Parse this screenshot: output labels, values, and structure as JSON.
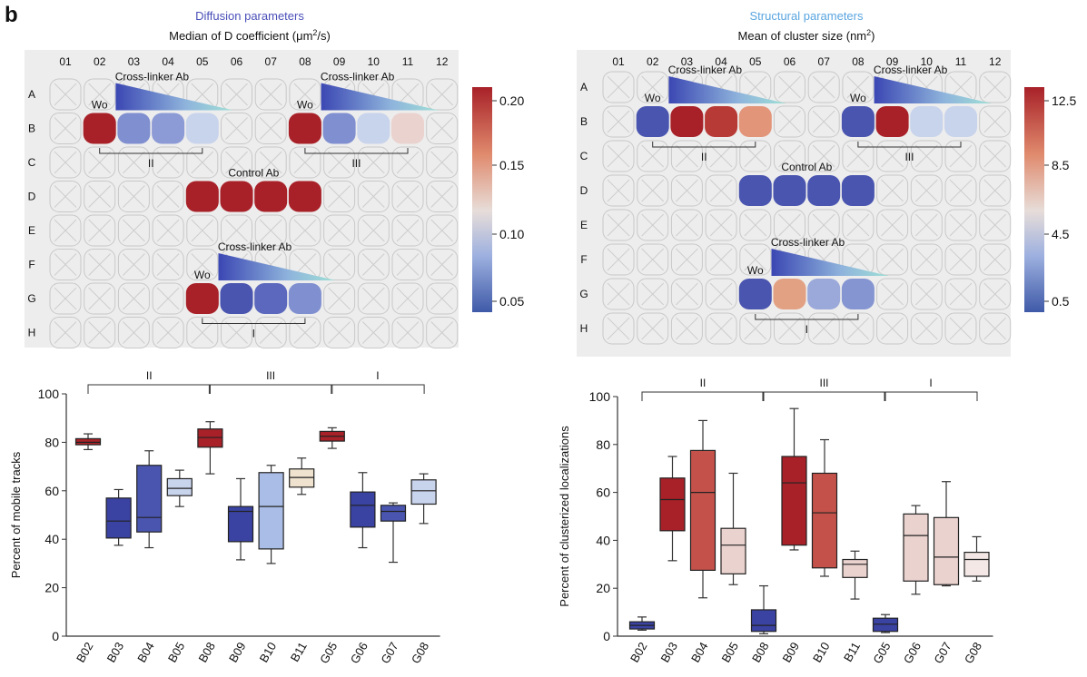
{
  "panel_label": "b",
  "colors": {
    "red": "#a82128",
    "red_med": "#c5524a",
    "salmon": "#e3a184",
    "pale_pink": "#ead2cf",
    "pale_blue": "#c8d3ec",
    "mid_blue": "#7f8fd0",
    "blue": "#4a55b0",
    "dark_blue": "#3a42a2",
    "plate_bg": "#ededed"
  },
  "plate_rows": [
    "A",
    "B",
    "C",
    "D",
    "E",
    "F",
    "G",
    "H"
  ],
  "plate_cols": [
    "01",
    "02",
    "03",
    "04",
    "05",
    "06",
    "07",
    "08",
    "09",
    "10",
    "11",
    "12"
  ],
  "heatmaps": [
    {
      "category_title": "Diffusion parameters",
      "category_color": "#4a4fb8",
      "title_main": "Median of D coefficient (",
      "title_unit": "μm",
      "title_sup": "2",
      "title_end": "/s)",
      "colorbar_ticks": [
        "0.20",
        "0.15",
        "0.10",
        "0.05"
      ],
      "cross_linker_label": "Cross-linker Ab",
      "wo_label": "Wo",
      "control_label": "Control Ab",
      "group_labels": [
        "II",
        "III",
        "I"
      ],
      "filled_wells": [
        {
          "row": "B",
          "col": "02",
          "color": "#a82128"
        },
        {
          "row": "B",
          "col": "03",
          "color": "#7f8fd0"
        },
        {
          "row": "B",
          "col": "04",
          "color": "#8c9ad6"
        },
        {
          "row": "B",
          "col": "05",
          "color": "#c8d3ec"
        },
        {
          "row": "B",
          "col": "08",
          "color": "#a82128"
        },
        {
          "row": "B",
          "col": "09",
          "color": "#7f8fd0"
        },
        {
          "row": "B",
          "col": "10",
          "color": "#c8d3ec"
        },
        {
          "row": "B",
          "col": "11",
          "color": "#ead2cf"
        },
        {
          "row": "D",
          "col": "05",
          "color": "#a82128"
        },
        {
          "row": "D",
          "col": "06",
          "color": "#a82128"
        },
        {
          "row": "D",
          "col": "07",
          "color": "#a82128"
        },
        {
          "row": "D",
          "col": "08",
          "color": "#a82128"
        },
        {
          "row": "G",
          "col": "05",
          "color": "#a82128"
        },
        {
          "row": "G",
          "col": "06",
          "color": "#4a55b0"
        },
        {
          "row": "G",
          "col": "07",
          "color": "#5b68bd"
        },
        {
          "row": "G",
          "col": "08",
          "color": "#7f8fd0"
        }
      ]
    },
    {
      "category_title": "Structural parameters",
      "category_color": "#5aa5e0",
      "title_main": "Mean of cluster size (",
      "title_unit": "nm",
      "title_sup": "2",
      "title_end": ")",
      "colorbar_ticks": [
        "12.5",
        "8.5",
        "4.5",
        "0.5"
      ],
      "cross_linker_label": "Cross-linker Ab",
      "wo_label": "Wo",
      "control_label": "Control Ab",
      "group_labels": [
        "II",
        "III",
        "I"
      ],
      "filled_wells": [
        {
          "row": "B",
          "col": "02",
          "color": "#4a55b0"
        },
        {
          "row": "B",
          "col": "03",
          "color": "#a82128"
        },
        {
          "row": "B",
          "col": "04",
          "color": "#b83a36"
        },
        {
          "row": "B",
          "col": "05",
          "color": "#e3957a"
        },
        {
          "row": "B",
          "col": "08",
          "color": "#4a55b0"
        },
        {
          "row": "B",
          "col": "09",
          "color": "#a82128"
        },
        {
          "row": "B",
          "col": "10",
          "color": "#c8d3ec"
        },
        {
          "row": "B",
          "col": "11",
          "color": "#c8d3ec"
        },
        {
          "row": "D",
          "col": "05",
          "color": "#4a55b0"
        },
        {
          "row": "D",
          "col": "06",
          "color": "#4a55b0"
        },
        {
          "row": "D",
          "col": "07",
          "color": "#4a55b0"
        },
        {
          "row": "D",
          "col": "08",
          "color": "#4a55b0"
        },
        {
          "row": "G",
          "col": "05",
          "color": "#4a55b0"
        },
        {
          "row": "G",
          "col": "06",
          "color": "#e3a184"
        },
        {
          "row": "G",
          "col": "07",
          "color": "#9aa8da"
        },
        {
          "row": "G",
          "col": "08",
          "color": "#8595d2"
        }
      ]
    }
  ],
  "chart_data": [
    {
      "type": "box",
      "title": "",
      "ylabel": "Percent of mobile tracks",
      "xlabel": "",
      "ylim": [
        0,
        100
      ],
      "yticks": [
        0,
        20,
        40,
        60,
        80,
        100
      ],
      "group_labels": [
        "II",
        "III",
        "I"
      ],
      "categories": [
        "B02",
        "B03",
        "B04",
        "B05",
        "B08",
        "B09",
        "B10",
        "B11",
        "G05",
        "G06",
        "G07",
        "G08"
      ],
      "boxes": [
        {
          "label": "B02",
          "min": 77,
          "q1": 79,
          "median": 80,
          "q3": 81.5,
          "max": 83.5,
          "color": "#a82128"
        },
        {
          "label": "B03",
          "min": 37.5,
          "q1": 40.5,
          "median": 47.5,
          "q3": 57,
          "max": 60.5,
          "color": "#3a42a2"
        },
        {
          "label": "B04",
          "min": 36.5,
          "q1": 43,
          "median": 49,
          "q3": 70.5,
          "max": 76.5,
          "color": "#4a55b0"
        },
        {
          "label": "B05",
          "min": 53.5,
          "q1": 58,
          "median": 61,
          "q3": 65,
          "max": 68.5,
          "color": "#c8d3ec"
        },
        {
          "label": "B08",
          "min": 67,
          "q1": 78,
          "median": 82,
          "q3": 85.5,
          "max": 88.5,
          "color": "#a82128"
        },
        {
          "label": "B09",
          "min": 31.5,
          "q1": 39,
          "median": 51.5,
          "q3": 53.5,
          "max": 65,
          "color": "#3a42a2"
        },
        {
          "label": "B10",
          "min": 30,
          "q1": 36,
          "median": 53.5,
          "q3": 67.5,
          "max": 70.5,
          "color": "#a9bde6"
        },
        {
          "label": "B11",
          "min": 58.5,
          "q1": 61.5,
          "median": 65.5,
          "q3": 69,
          "max": 73.5,
          "color": "#efe3cf"
        },
        {
          "label": "G05",
          "min": 77.5,
          "q1": 80.5,
          "median": 82.5,
          "q3": 84.5,
          "max": 86,
          "color": "#a82128"
        },
        {
          "label": "G06",
          "min": 36.5,
          "q1": 45,
          "median": 54,
          "q3": 59.5,
          "max": 67.5,
          "color": "#3a42a2"
        },
        {
          "label": "G07",
          "min": 30.5,
          "q1": 47.5,
          "median": 51.5,
          "q3": 54,
          "max": 55,
          "color": "#4a55b0"
        },
        {
          "label": "G08",
          "min": 46.5,
          "q1": 54.5,
          "median": 60,
          "q3": 64.5,
          "max": 67,
          "color": "#c8d3ec"
        }
      ]
    },
    {
      "type": "box",
      "title": "",
      "ylabel": "Percent of clusterized localizations",
      "xlabel": "",
      "ylim": [
        0,
        100
      ],
      "yticks": [
        0,
        20,
        40,
        60,
        80,
        100
      ],
      "group_labels": [
        "II",
        "III",
        "I"
      ],
      "categories": [
        "B02",
        "B03",
        "B04",
        "B05",
        "B08",
        "B09",
        "B10",
        "B11",
        "G05",
        "G06",
        "G07",
        "G08"
      ],
      "boxes": [
        {
          "label": "B02",
          "min": 2.5,
          "q1": 3,
          "median": 4.5,
          "q3": 6,
          "max": 8,
          "color": "#3a42a2"
        },
        {
          "label": "B03",
          "min": 31.5,
          "q1": 44,
          "median": 57,
          "q3": 66,
          "max": 75,
          "color": "#a82128"
        },
        {
          "label": "B04",
          "min": 16,
          "q1": 27.5,
          "median": 60,
          "q3": 77.5,
          "max": 90,
          "color": "#c5524a"
        },
        {
          "label": "B05",
          "min": 21.5,
          "q1": 26,
          "median": 38,
          "q3": 45,
          "max": 68,
          "color": "#ead2cf"
        },
        {
          "label": "B08",
          "min": 1,
          "q1": 2,
          "median": 4.5,
          "q3": 11,
          "max": 21,
          "color": "#3a42a2"
        },
        {
          "label": "B09",
          "min": 36,
          "q1": 38,
          "median": 64,
          "q3": 75,
          "max": 95,
          "color": "#a82128"
        },
        {
          "label": "B10",
          "min": 25,
          "q1": 28.5,
          "median": 51.5,
          "q3": 68,
          "max": 82,
          "color": "#c5524a"
        },
        {
          "label": "B11",
          "min": 15.5,
          "q1": 24.5,
          "median": 30,
          "q3": 32,
          "max": 35.5,
          "color": "#ead2cf"
        },
        {
          "label": "G05",
          "min": 1.5,
          "q1": 2,
          "median": 5,
          "q3": 7.5,
          "max": 9,
          "color": "#3a42a2"
        },
        {
          "label": "G06",
          "min": 17.5,
          "q1": 23,
          "median": 42,
          "q3": 51,
          "max": 54.5,
          "color": "#ead2cf"
        },
        {
          "label": "G07",
          "min": 21,
          "q1": 21.5,
          "median": 33,
          "q3": 49.5,
          "max": 64.5,
          "color": "#ead2cf"
        },
        {
          "label": "G08",
          "min": 23,
          "q1": 25,
          "median": 32,
          "q3": 35,
          "max": 41.5,
          "color": "#f3e8e6"
        }
      ]
    }
  ]
}
